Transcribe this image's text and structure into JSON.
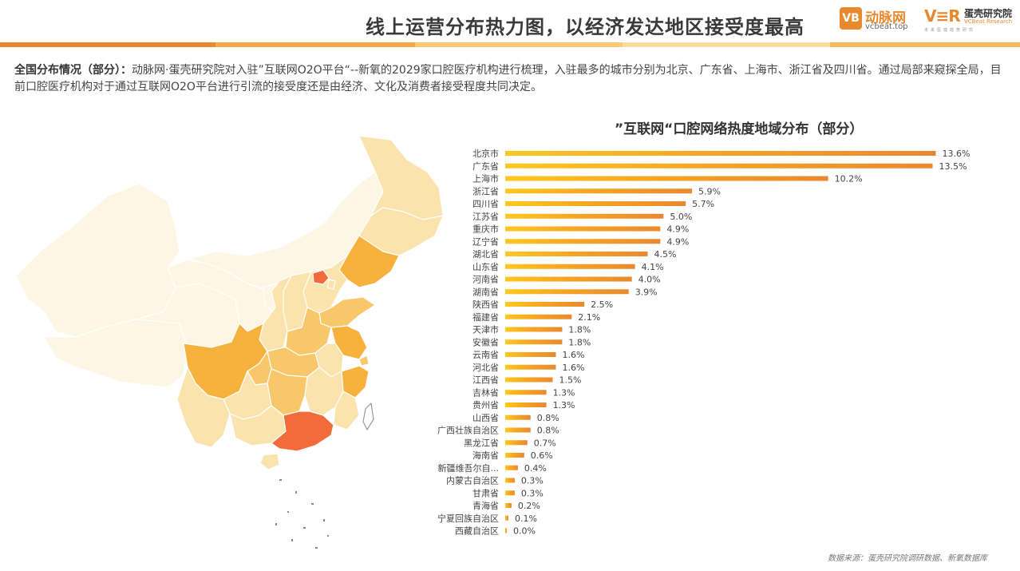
{
  "header": {
    "title": "线上运营分布热力图，以经济发达地区接受度最高",
    "logo1_mark": "VB",
    "logo1_name": "动脉网",
    "logo1_url": "vcbeat.top",
    "logo2_mark": "V≡R",
    "logo2_name": "蛋壳研究院",
    "logo2_en": "VCBeat Research",
    "logo2_tag": "未来医健趋势研究"
  },
  "intro": {
    "label": "全国分布情况（部分）：",
    "text": "动脉网·蛋壳研究院对入驻”互联网O2O平台“--新氧的2029家口腔医疗机构进行梳理，入驻最多的城市分别为北京、广东省、上海市、浙江省及四川省。通过局部来窥探全局，目前口腔医疗机构对于通过互联网O2O平台进行引流的接受度还是由经济、文化及消费者接受程度共同决定。"
  },
  "colors": {
    "accent": "#e9892f",
    "bar_light": "#ffc81e",
    "bar_mid": "#f5a623",
    "bar_dark": "#e9892f",
    "strip": [
      "#e9892f",
      "#f5a84a",
      "#f9c978",
      "#fbdc9e",
      "#f6b75e"
    ],
    "map_high": "#f26b3a",
    "map_mid_high": "#f6b23d",
    "map_mid": "#f7c76a",
    "map_low": "#fbe3ad",
    "map_min": "#fdf6e4"
  },
  "chart_data": {
    "type": "bar",
    "orientation": "horizontal",
    "title": "”互联网“口腔网络热度地域分布（部分）",
    "categories": [
      "北京市",
      "广东省",
      "上海市",
      "浙江省",
      "四川省",
      "江苏省",
      "重庆市",
      "辽宁省",
      "湖北省",
      "山东省",
      "河南省",
      "湖南省",
      "陕西省",
      "福建省",
      "天津市",
      "安徽省",
      "云南省",
      "河北省",
      "江西省",
      "吉林省",
      "贵州省",
      "山西省",
      "广西壮族自治区",
      "黑龙江省",
      "海南省",
      "新疆维吾尔自...",
      "内蒙古自治区",
      "甘肃省",
      "青海省",
      "宁夏回族自治区",
      "西藏自治区"
    ],
    "values": [
      13.6,
      13.5,
      10.2,
      5.9,
      5.7,
      5.0,
      4.9,
      4.9,
      4.5,
      4.1,
      4.0,
      3.9,
      2.5,
      2.1,
      1.8,
      1.8,
      1.6,
      1.6,
      1.5,
      1.3,
      1.3,
      0.8,
      0.8,
      0.7,
      0.6,
      0.4,
      0.3,
      0.3,
      0.2,
      0.1,
      0.0
    ],
    "value_labels": [
      "13.6%",
      "13.5%",
      "10.2%",
      "5.9%",
      "5.7%",
      "5.0%",
      "4.9%",
      "4.9%",
      "4.5%",
      "4.1%",
      "4.0%",
      "3.9%",
      "2.5%",
      "2.1%",
      "1.8%",
      "1.8%",
      "1.6%",
      "1.6%",
      "1.5%",
      "1.3%",
      "1.3%",
      "0.8%",
      "0.8%",
      "0.7%",
      "0.6%",
      "0.4%",
      "0.3%",
      "0.3%",
      "0.2%",
      "0.1%",
      "0.0%"
    ],
    "unit": "%",
    "xlim": [
      0,
      15
    ],
    "grid": false,
    "legend": "none"
  },
  "map": {
    "regions_level": {
      "beijing": "high",
      "guangdong": "high",
      "sichuan": "mid_high",
      "zhejiang": "mid_high",
      "liaoning": "mid_high",
      "jiangsu": "mid_high",
      "shandong": "mid",
      "henan": "mid",
      "hubei": "mid",
      "hunan": "mid",
      "chongqing": "mid",
      "shanghai": "mid",
      "shaanxi": "low",
      "fujian": "low",
      "anhui": "low",
      "yunnan": "low",
      "hebei": "low",
      "jiangxi": "low",
      "jilin": "low",
      "guizhou": "low",
      "shanxi": "low",
      "guangxi": "low",
      "heilongjiang": "low",
      "hainan": "low",
      "tianjin": "low",
      "xinjiang": "min",
      "neimenggu": "min",
      "gansu": "min",
      "qinghai": "min",
      "ningxia": "min",
      "xizang": "min"
    }
  },
  "footer": {
    "source": "数据来源：蛋壳研究院调研数据、新氧数据库"
  }
}
